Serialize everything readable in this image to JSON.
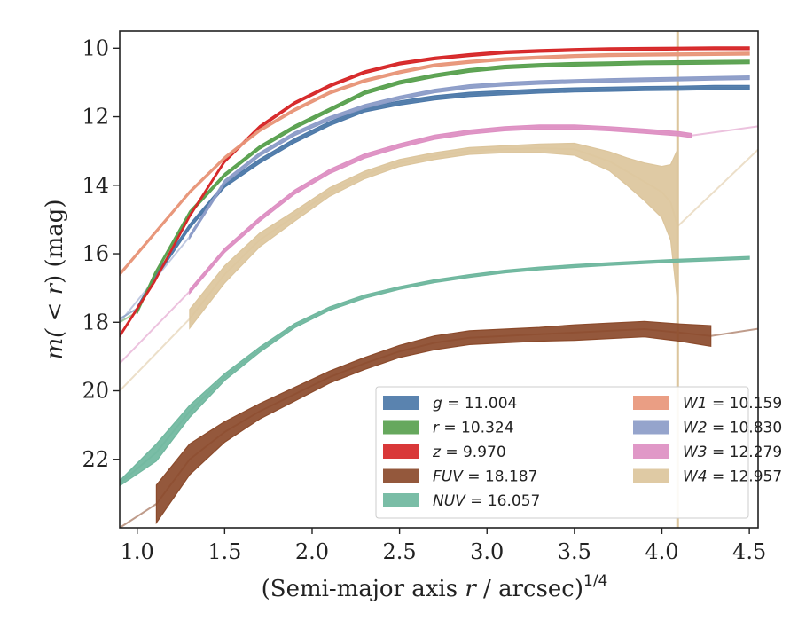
{
  "chart_data": {
    "type": "area",
    "xlabel": "(Semi-major axis r / arcsec)^1/4",
    "xlabel_main": "(Semi-major axis ",
    "xlabel_var": "r",
    "xlabel_unit": " / arcsec)",
    "xlabel_exp": "1/4",
    "ylabel": "m(< r) (mag)",
    "ylabel_prefix": "m(",
    "ylabel_lt": " < ",
    "ylabel_var": "r",
    "ylabel_suffix": ") (mag)",
    "xlim": [
      0.9,
      4.55
    ],
    "ylim": [
      24.0,
      9.5
    ],
    "y_inverted": true,
    "x_ticks": [
      1.0,
      1.5,
      2.0,
      2.5,
      3.0,
      3.5,
      4.0,
      4.5
    ],
    "x_tick_labels": [
      "1.0",
      "1.5",
      "2.0",
      "2.5",
      "3.0",
      "3.5",
      "4.0",
      "4.5"
    ],
    "y_ticks": [
      10,
      12,
      14,
      16,
      18,
      20,
      22
    ],
    "y_tick_labels": [
      "10",
      "12",
      "14",
      "16",
      "18",
      "20",
      "22"
    ],
    "grid": false,
    "legend_position": "lower-right",
    "legend_columns": 2,
    "vertical_line": {
      "x": 4.09,
      "color": "#dcc59c"
    },
    "series": [
      {
        "band": "g",
        "value": "11.004",
        "color": "#4c78a8",
        "x": [
          1.0,
          1.1,
          1.3,
          1.5,
          1.7,
          1.9,
          2.1,
          2.3,
          2.5,
          2.7,
          2.9,
          3.1,
          3.3,
          3.5,
          3.7,
          3.9,
          4.1,
          4.3,
          4.5
        ],
        "y": [
          17.6,
          16.7,
          15.2,
          14.0,
          13.3,
          12.7,
          12.2,
          11.8,
          11.6,
          11.45,
          11.35,
          11.3,
          11.25,
          11.22,
          11.2,
          11.18,
          11.17,
          11.15,
          11.15
        ],
        "width": 0.12,
        "x_model_start": 0.9,
        "y_model_start": 17.9
      },
      {
        "band": "r",
        "value": "10.324",
        "color": "#59a14f",
        "x": [
          1.0,
          1.1,
          1.3,
          1.5,
          1.7,
          1.9,
          2.1,
          2.3,
          2.5,
          2.7,
          2.9,
          3.1,
          3.3,
          3.5,
          3.7,
          3.9,
          4.1,
          4.3,
          4.5
        ],
        "y": [
          17.7,
          16.6,
          14.8,
          13.7,
          12.9,
          12.3,
          11.8,
          11.3,
          11.0,
          10.8,
          10.65,
          10.55,
          10.5,
          10.47,
          10.45,
          10.43,
          10.42,
          10.41,
          10.4
        ],
        "width": 0.1,
        "x_model_start": 0.9,
        "y_model_start": 18.0
      },
      {
        "band": "z",
        "value": "9.970",
        "color": "#d62728",
        "x": [
          0.9,
          1.1,
          1.3,
          1.5,
          1.7,
          1.9,
          2.1,
          2.3,
          2.5,
          2.7,
          2.9,
          3.1,
          3.3,
          3.5,
          3.7,
          3.9,
          4.1,
          4.3,
          4.5
        ],
        "y": [
          18.4,
          16.8,
          14.9,
          13.3,
          12.3,
          11.6,
          11.1,
          10.7,
          10.45,
          10.3,
          10.2,
          10.12,
          10.08,
          10.05,
          10.03,
          10.02,
          10.01,
          10.0,
          10.0
        ],
        "width": 0.08,
        "x_model_start": 0.9,
        "y_model_start": 18.4
      },
      {
        "band": "W1",
        "value": "10.159",
        "color": "#e8967a",
        "x": [
          0.9,
          1.1,
          1.3,
          1.5,
          1.7,
          1.9,
          2.1,
          2.3,
          2.5,
          2.7,
          2.9,
          3.1,
          3.3,
          3.5,
          3.7,
          3.9,
          4.1,
          4.3,
          4.5
        ],
        "y": [
          16.6,
          15.4,
          14.2,
          13.2,
          12.4,
          11.8,
          11.3,
          10.95,
          10.7,
          10.5,
          10.4,
          10.32,
          10.27,
          10.23,
          10.2,
          10.19,
          10.18,
          10.17,
          10.16
        ],
        "width": 0.08,
        "x_model_start": 0.9,
        "y_model_start": 16.6
      },
      {
        "band": "W2",
        "value": "10.830",
        "color": "#8c9cc8",
        "x": [
          1.3,
          1.5,
          1.7,
          1.9,
          2.1,
          2.3,
          2.5,
          2.7,
          2.9,
          3.1,
          3.3,
          3.5,
          3.7,
          3.9,
          4.1,
          4.3,
          4.5
        ],
        "y": [
          15.5,
          13.9,
          13.1,
          12.5,
          12.05,
          11.7,
          11.45,
          11.25,
          11.12,
          11.05,
          11.0,
          10.97,
          10.94,
          10.92,
          10.9,
          10.88,
          10.86
        ],
        "width": 0.1,
        "x_model_start": 0.9,
        "y_model_start": 18.0
      },
      {
        "band": "W3",
        "value": "12.279",
        "color": "#dd8fc2",
        "x": [
          1.3,
          1.5,
          1.7,
          1.9,
          2.1,
          2.3,
          2.5,
          2.7,
          2.9,
          3.1,
          3.3,
          3.5,
          3.7,
          3.9,
          4.1,
          4.17
        ],
        "y": [
          17.1,
          15.9,
          15.0,
          14.2,
          13.6,
          13.15,
          12.85,
          12.6,
          12.45,
          12.35,
          12.3,
          12.3,
          12.35,
          12.42,
          12.5,
          12.55
        ],
        "width": 0.12,
        "x_model_start": 0.9,
        "y_model_start": 19.2,
        "model_end_x": 4.55,
        "model_end_y": 12.28
      },
      {
        "band": "W4",
        "value": "12.957",
        "color": "#dcc59c",
        "x": [
          1.3,
          1.5,
          1.7,
          1.9,
          2.1,
          2.3,
          2.5,
          2.7,
          2.9,
          3.1,
          3.3,
          3.5,
          3.7,
          3.8,
          3.9,
          4.0,
          4.05,
          4.09
        ],
        "y": [
          17.9,
          16.6,
          15.6,
          14.9,
          14.2,
          13.7,
          13.35,
          13.15,
          13.0,
          12.95,
          12.92,
          12.95,
          13.3,
          13.6,
          13.9,
          14.2,
          14.5,
          15.2
        ],
        "width": [
          0.55,
          0.5,
          0.4,
          0.3,
          0.25,
          0.22,
          0.2,
          0.2,
          0.2,
          0.2,
          0.25,
          0.35,
          0.55,
          0.8,
          1.1,
          1.5,
          2.2,
          4.5
        ],
        "x_model_start": 0.9,
        "y_model_start": 20.0,
        "model_end_x": 4.55,
        "model_end_y": 12.96
      },
      {
        "band": "FUV",
        "value": "18.187",
        "color": "#8b4a2b",
        "x": [
          1.11,
          1.3,
          1.5,
          1.7,
          1.9,
          2.1,
          2.3,
          2.5,
          2.7,
          2.9,
          3.1,
          3.3,
          3.5,
          3.7,
          3.9,
          4.1,
          4.28
        ],
        "y": [
          23.3,
          22.0,
          21.2,
          20.6,
          20.1,
          19.6,
          19.2,
          18.85,
          18.6,
          18.45,
          18.4,
          18.35,
          18.3,
          18.25,
          18.2,
          18.3,
          18.4
        ],
        "width": [
          1.1,
          0.9,
          0.6,
          0.45,
          0.4,
          0.35,
          0.35,
          0.35,
          0.4,
          0.4,
          0.4,
          0.4,
          0.45,
          0.45,
          0.45,
          0.5,
          0.6
        ],
        "x_model_start": 0.9,
        "y_model_start": 24.0,
        "model_end_x": 4.55,
        "model_end_y": 18.19
      },
      {
        "band": "NUV",
        "value": "16.057",
        "color": "#6fb79e",
        "x": [
          0.9,
          1.11,
          1.3,
          1.5,
          1.7,
          1.9,
          2.1,
          2.3,
          2.5,
          2.7,
          2.9,
          3.1,
          3.3,
          3.5,
          3.7,
          3.9,
          4.1,
          4.3,
          4.5
        ],
        "y": [
          22.7,
          21.8,
          20.6,
          19.6,
          18.8,
          18.1,
          17.6,
          17.25,
          17.0,
          16.8,
          16.65,
          16.52,
          16.43,
          16.36,
          16.3,
          16.25,
          16.2,
          16.16,
          16.12
        ],
        "width": [
          0.15,
          0.5,
          0.35,
          0.2,
          0.15,
          0.12,
          0.1,
          0.1,
          0.08,
          0.08,
          0.08,
          0.08,
          0.08,
          0.08,
          0.08,
          0.08,
          0.08,
          0.08,
          0.08
        ],
        "x_model_start": 0.9,
        "y_model_start": 22.7
      }
    ],
    "legend": [
      {
        "var": "g",
        "text": " = 11.004",
        "color": "#4c78a8"
      },
      {
        "var": "r",
        "text": " = 10.324",
        "color": "#59a14f"
      },
      {
        "var": "z",
        "text": " = 9.970",
        "color": "#d62728"
      },
      {
        "var": "FUV",
        "text": " = 18.187",
        "color": "#8b4a2b"
      },
      {
        "var": "NUV",
        "text": " = 16.057",
        "color": "#6fb79e"
      },
      {
        "var": "W1",
        "text": " = 10.159",
        "color": "#e8967a"
      },
      {
        "var": "W2",
        "text": " = 10.830",
        "color": "#8c9cc8"
      },
      {
        "var": "W3",
        "text": " = 12.279",
        "color": "#dd8fc2"
      },
      {
        "var": "W4",
        "text": " = 12.957",
        "color": "#dcc59c"
      }
    ]
  }
}
